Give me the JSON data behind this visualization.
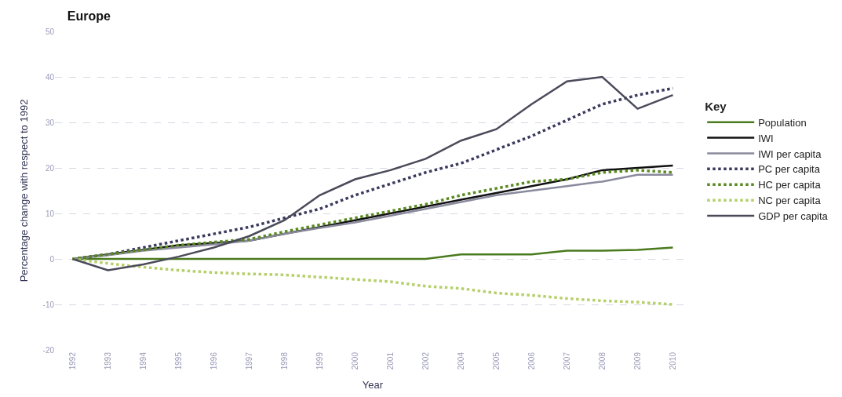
{
  "chart_data": {
    "type": "line",
    "title": "Europe",
    "xlabel": "Year",
    "ylabel": "Percentage change with respect to 1992",
    "legend_title": "Key",
    "categories": [
      "1992",
      "1993",
      "1994",
      "1995",
      "1996",
      "1997",
      "1998",
      "1999",
      "2000",
      "2001",
      "2002",
      "2004",
      "2005",
      "2006",
      "2007",
      "2008",
      "2009",
      "2010"
    ],
    "series": [
      {
        "name": "Population",
        "color": "#4a7a1e",
        "line_style": "solid",
        "values": [
          0,
          0,
          0,
          0,
          0,
          0,
          0,
          0,
          0,
          0,
          0,
          1,
          1,
          1,
          1.8,
          1.8,
          2,
          2.5
        ]
      },
      {
        "name": "IWI",
        "color": "#111111",
        "line_style": "solid",
        "values": [
          0,
          1,
          2,
          3,
          3.5,
          4,
          5.5,
          7,
          8.5,
          10,
          11.5,
          13,
          14.5,
          16,
          17.5,
          19.5,
          20,
          20.5
        ]
      },
      {
        "name": "IWI per capita",
        "color": "#8a8a9e",
        "line_style": "solid",
        "values": [
          0,
          0.8,
          1.8,
          2.5,
          3.2,
          4,
          5.5,
          6.8,
          8,
          9.5,
          11,
          12.5,
          14,
          15,
          16,
          17,
          18.5,
          18.5
        ]
      },
      {
        "name": "PC per capita",
        "color": "#3a3a5e",
        "line_style": "dotted",
        "values": [
          0,
          1,
          2.5,
          4,
          5.5,
          7,
          9,
          11,
          14,
          16.5,
          19,
          21,
          24,
          27,
          30.5,
          34,
          36,
          37.5
        ]
      },
      {
        "name": "HC per capita",
        "color": "#5a8a20",
        "line_style": "dotted",
        "values": [
          0,
          1,
          2,
          3,
          3.7,
          4.3,
          6,
          7.5,
          9,
          10.5,
          12,
          14,
          15.5,
          17,
          17.5,
          19,
          19.5,
          19
        ]
      },
      {
        "name": "NC per capita",
        "color": "#b5d06a",
        "line_style": "dotted",
        "values": [
          0,
          -1,
          -1.8,
          -2.5,
          -3,
          -3.3,
          -3.5,
          -4,
          -4.5,
          -5,
          -6,
          -6.5,
          -7.5,
          -8,
          -8.7,
          -9.2,
          -9.5,
          -10
        ]
      },
      {
        "name": "GDP per capita",
        "color": "#4a4a5a",
        "line_style": "solid",
        "values": [
          0,
          -2.5,
          -1.2,
          0.5,
          2.5,
          5,
          8.5,
          14,
          17.5,
          19.5,
          22,
          26,
          28.5,
          34,
          39,
          40,
          33,
          36
        ]
      }
    ],
    "ylim": [
      -20,
      50
    ],
    "yticks": [
      -20,
      -10,
      0,
      10,
      20,
      30,
      40,
      50
    ],
    "grid": "y",
    "legend": "right",
    "marker": "none"
  }
}
